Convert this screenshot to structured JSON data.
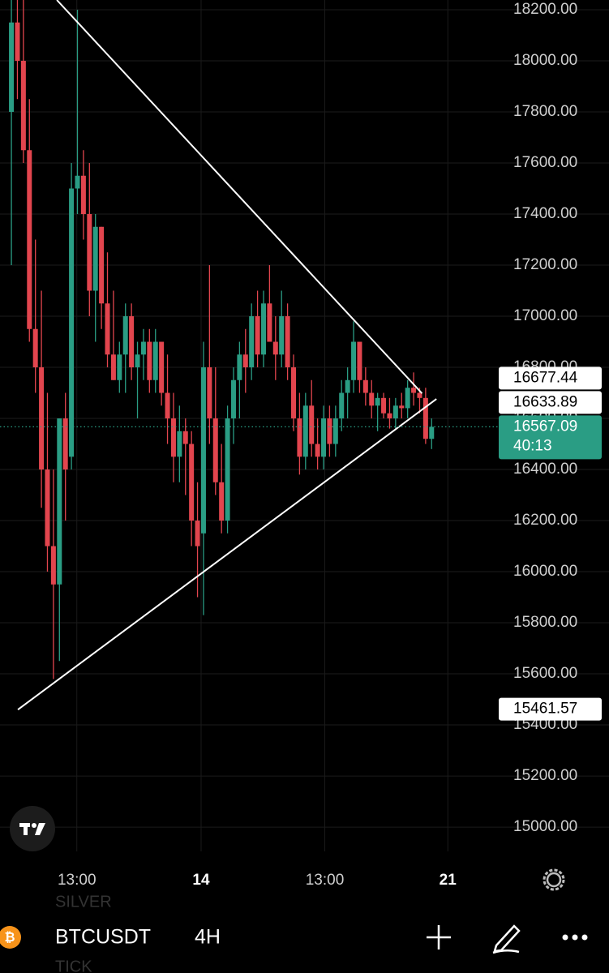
{
  "chart_data": {
    "type": "candlestick",
    "up_color": "#2a9d84",
    "down_color": "#e2454e",
    "open": [
      17800,
      18150,
      18000,
      17650,
      16950,
      16800,
      16400,
      16100,
      15950,
      16600,
      16450,
      17500,
      17550,
      17400,
      17100,
      17350,
      17050,
      16850,
      16750,
      16850,
      17000,
      16800,
      16850,
      16900,
      16750,
      16900,
      16700,
      16600,
      16450,
      16550,
      16500,
      16200,
      16150,
      16800,
      16600,
      16350,
      16200,
      16600,
      16750,
      16850,
      16800,
      17000,
      16850,
      17050,
      16900,
      16850,
      17000,
      16800,
      16600,
      16450,
      16650,
      16500,
      16450,
      16600,
      16500,
      16600,
      16700,
      16750,
      16900,
      16750,
      16700,
      16650,
      16680,
      16620,
      16600,
      16650,
      16640,
      16720,
      16700,
      16680,
      16520
    ],
    "high": [
      18250,
      18250,
      18250,
      17850,
      17300,
      17100,
      16700,
      16400,
      16600,
      16700,
      17600,
      18200,
      17650,
      17600,
      17400,
      17350,
      17250,
      17100,
      16900,
      17050,
      17050,
      16900,
      16950,
      16950,
      16950,
      16900,
      16850,
      16700,
      16650,
      16600,
      16550,
      16350,
      16900,
      17200,
      16800,
      16500,
      16650,
      16800,
      16900,
      16950,
      17050,
      17100,
      17100,
      17200,
      17000,
      17100,
      17050,
      16850,
      16700,
      16700,
      16750,
      16600,
      16650,
      16650,
      16650,
      16750,
      16800,
      16980,
      16900,
      16800,
      16750,
      16700,
      16700,
      16680,
      16680,
      16700,
      16750,
      16780,
      16720,
      16720,
      16600
    ],
    "low": [
      17200,
      17850,
      17600,
      16900,
      16700,
      16250,
      16000,
      15580,
      15650,
      16200,
      16400,
      17400,
      17300,
      17000,
      16900,
      16950,
      16800,
      16750,
      16700,
      16700,
      16750,
      16600,
      16750,
      16700,
      16700,
      16650,
      16500,
      16350,
      16350,
      16300,
      16100,
      15900,
      15830,
      16500,
      16300,
      16150,
      16150,
      16500,
      16600,
      16700,
      16750,
      16800,
      16800,
      16900,
      16750,
      16800,
      16750,
      16550,
      16380,
      16400,
      16450,
      16400,
      16400,
      16450,
      16450,
      16550,
      16600,
      16700,
      16700,
      16650,
      16600,
      16550,
      16600,
      16560,
      16560,
      16600,
      16600,
      16650,
      16620,
      16500,
      16480
    ],
    "close": [
      18150,
      18000,
      17650,
      16950,
      16800,
      16400,
      16100,
      15950,
      16600,
      16400,
      17500,
      17550,
      17400,
      17100,
      17350,
      17050,
      16850,
      16750,
      16850,
      17000,
      16800,
      16850,
      16900,
      16750,
      16900,
      16700,
      16600,
      16450,
      16550,
      16500,
      16200,
      16100,
      16800,
      16600,
      16350,
      16200,
      16600,
      16750,
      16850,
      16800,
      17000,
      16850,
      17050,
      16900,
      16850,
      17000,
      16800,
      16600,
      16450,
      16650,
      16500,
      16450,
      16600,
      16500,
      16600,
      16700,
      16750,
      16900,
      16750,
      16700,
      16650,
      16680,
      16620,
      16600,
      16650,
      16640,
      16720,
      16700,
      16680,
      16520,
      16567.09
    ],
    "xlim": [
      -1.9,
      80.5
    ],
    "xticks": [
      {
        "value": 10.9,
        "label": "13:00"
      },
      {
        "value": 31.6,
        "label": "14"
      },
      {
        "value": 52.2,
        "label": "13:00"
      },
      {
        "value": 72.7,
        "label": "21"
      }
    ],
    "ylim": [
      14905,
      18238
    ],
    "yticks": [
      {
        "value": 15000,
        "label": "15000.00"
      },
      {
        "value": 15200,
        "label": "15200.00"
      },
      {
        "value": 15400,
        "label": "15400.00"
      },
      {
        "value": 15600,
        "label": "15600.00"
      },
      {
        "value": 15800,
        "label": "15800.00"
      },
      {
        "value": 16000,
        "label": "16000.00"
      },
      {
        "value": 16200,
        "label": "16200.00"
      },
      {
        "value": 16400,
        "label": "16400.00"
      },
      {
        "value": 16600,
        "label": "16600.00"
      },
      {
        "value": 16800,
        "label": "16800.00"
      },
      {
        "value": 17000,
        "label": "17000.00"
      },
      {
        "value": 17200,
        "label": "17200.00"
      },
      {
        "value": 17400,
        "label": "17400.00"
      },
      {
        "value": 17600,
        "label": "17600.00"
      },
      {
        "value": 17800,
        "label": "17800.00"
      },
      {
        "value": 18000,
        "label": "18000.00"
      },
      {
        "value": 18200,
        "label": "18200.00"
      }
    ],
    "grid": true,
    "trend_lines": [
      {
        "x": [
          7.57,
          68.4
        ],
        "y": [
          18238,
          16698
        ]
      },
      {
        "x": [
          1.08,
          70.8
        ],
        "y": [
          15460,
          16676
        ]
      }
    ],
    "price_labels": [
      16677.44,
      16633.89,
      15461.57
    ],
    "last_price": 16567.09,
    "countdown": "40:13"
  },
  "toolbar": {
    "symbol": "BTCUSDT",
    "interval": "4H",
    "watermarks": [
      "SILVER",
      "TICK"
    ]
  }
}
